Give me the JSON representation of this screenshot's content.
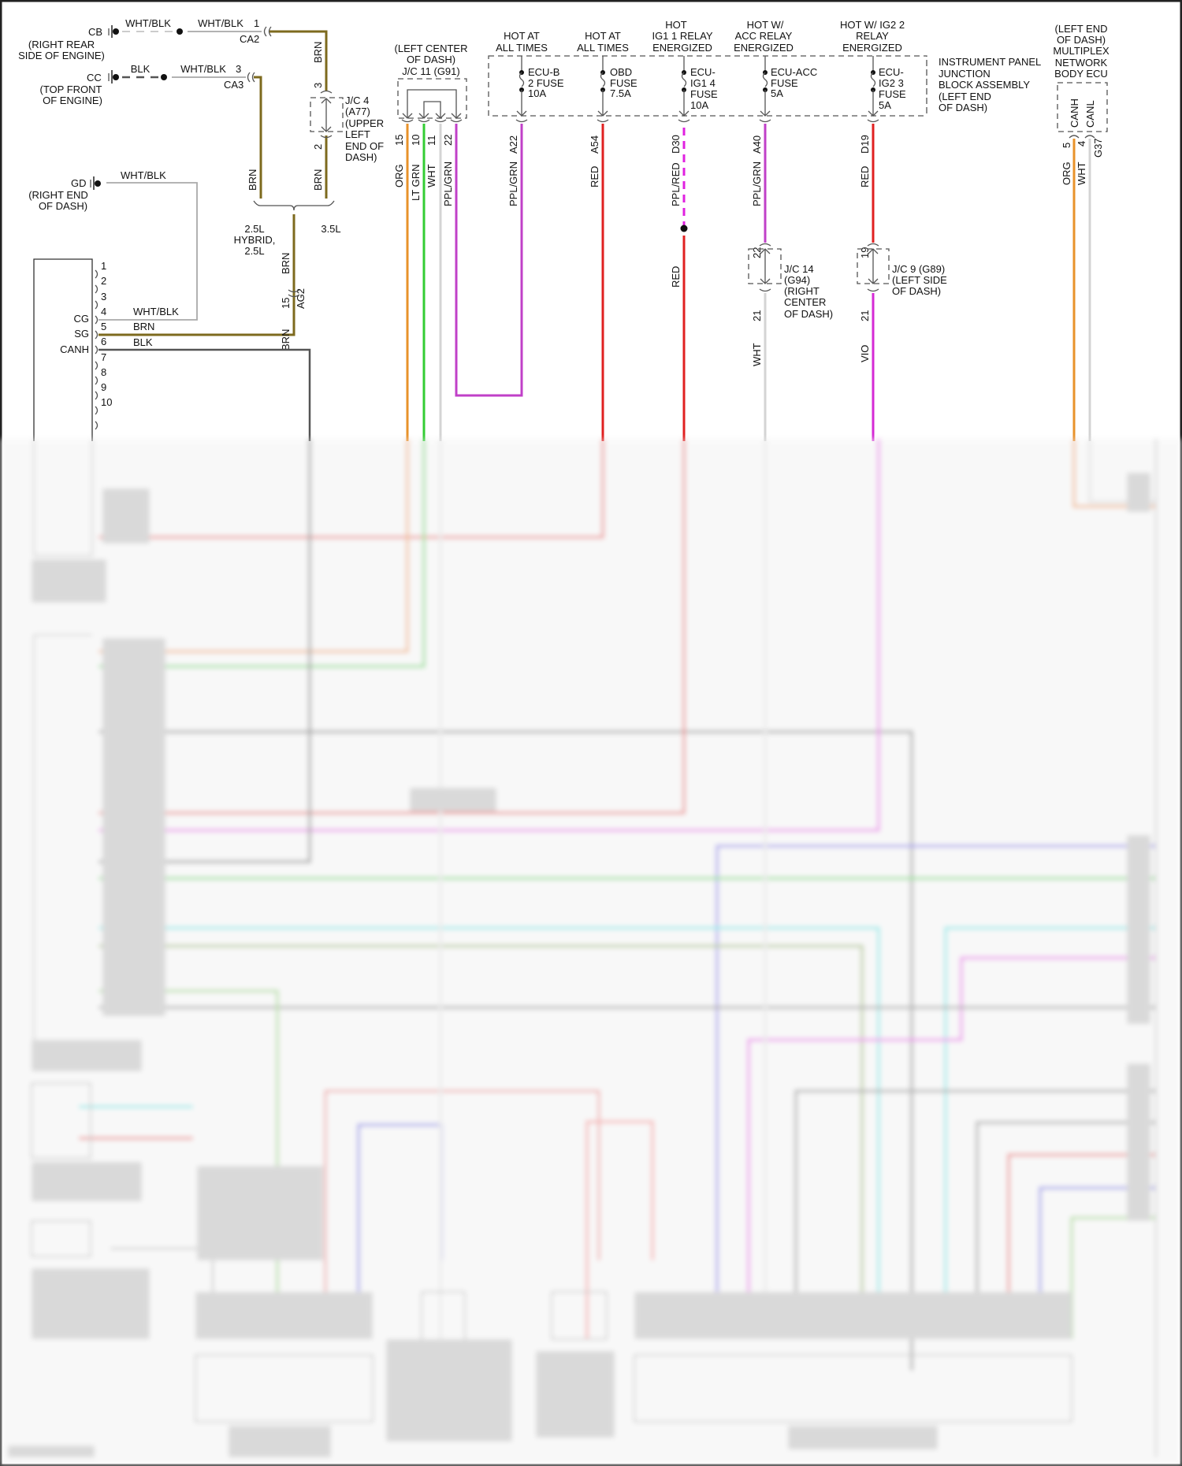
{
  "colors": {
    "BRN": "#7d6a1e",
    "ORG": "#e8922a",
    "LT_GRN": "#33cc33",
    "WHT": "#cfcfcf",
    "PPL_GRN": "#c040c8",
    "RED": "#e02020",
    "PPL_RED": "#e020e0",
    "VIO": "#d52ad5",
    "BLK": "#555555",
    "CAN": "#666666"
  },
  "grounds": [
    {
      "name": "CB",
      "location": [
        "(RIGHT REAR",
        "SIDE OF ENGINE)"
      ],
      "wire_a": "WHT/BLK",
      "wire_b": "WHT/BLK",
      "pin": "1",
      "connector": "CA2"
    },
    {
      "name": "CC",
      "location": [
        "(TOP FRONT",
        "OF ENGINE)"
      ],
      "wire_a": "BLK",
      "wire_b": "WHT/BLK",
      "pin": "3",
      "connector": "CA3"
    },
    {
      "name": "GD",
      "location": [
        "(RIGHT END",
        "OF DASH)"
      ],
      "wire_a": "WHT/BLK"
    }
  ],
  "jc4": {
    "lines": [
      "J/C 4",
      "(A77)",
      "(UPPER",
      "LEFT",
      "END OF",
      "DASH)"
    ],
    "pin_in": "3",
    "pin_out": "2",
    "wire_top": "BRN",
    "wire_bottom": "BRN",
    "wire_left": "BRN"
  },
  "brace": {
    "left": [
      "2.5L",
      "HYBRID,",
      "2.5L"
    ],
    "right": "3.5L"
  },
  "ag2": {
    "connector": "AG2",
    "pin": "15",
    "wire_top": "BRN",
    "wire_bottom": "BRN"
  },
  "ecu_left": {
    "pins": [
      "1",
      "2",
      "3",
      "4",
      "5",
      "6",
      "7",
      "8",
      "9",
      "10"
    ],
    "pin_labels": [
      "CG",
      "SG",
      "CANH"
    ],
    "wire_labels": [
      "WHT/BLK",
      "BRN",
      "BLK"
    ]
  },
  "jc11": {
    "lines": [
      "(LEFT CENTER",
      "OF DASH)",
      "J/C 11 (G91)"
    ],
    "pins": [
      "15",
      "10",
      "11",
      "22"
    ],
    "wires": [
      "ORG",
      "LT GRN",
      "WHT",
      "PPL/GRN"
    ]
  },
  "junction_block": {
    "lines": [
      "INSTRUMENT PANEL",
      "JUNCTION",
      "BLOCK ASSEMBLY",
      "(LEFT END",
      "OF DASH)"
    ],
    "circuits": [
      {
        "header": [
          "HOT AT",
          "ALL TIMES"
        ],
        "fuse": [
          "ECU-B",
          "2 FUSE",
          "10A"
        ],
        "pin": "A22",
        "wire": "PPL/GRN"
      },
      {
        "header": [
          "HOT AT",
          "ALL TIMES"
        ],
        "fuse": [
          "OBD",
          "FUSE",
          "7.5A"
        ],
        "pin": "A54",
        "wire": "RED"
      },
      {
        "header": [
          "HOT",
          "IG1 1 RELAY",
          "ENERGIZED"
        ],
        "fuse": [
          "ECU-",
          "IG1 4",
          "FUSE",
          "10A"
        ],
        "pin": "D30",
        "wire": "PPL/RED",
        "wire_after_splice": "RED"
      },
      {
        "header": [
          "HOT W/",
          "ACC RELAY",
          "ENERGIZED"
        ],
        "fuse": [
          "ECU-ACC",
          "FUSE",
          "5A"
        ],
        "pin": "A40",
        "wire": "PPL/GRN"
      },
      {
        "header": [
          "HOT W/ IG2 2",
          "RELAY",
          "ENERGIZED"
        ],
        "fuse": [
          "ECU-",
          "IG2 3",
          "FUSE",
          "5A"
        ],
        "pin": "D19",
        "wire": "RED"
      }
    ]
  },
  "jc14": {
    "lines": [
      "J/C 14",
      "(G94)",
      "(RIGHT",
      "CENTER",
      "OF DASH)"
    ],
    "pin_in": "22",
    "pin_out": "21",
    "wire_out": "WHT"
  },
  "jc9": {
    "lines": [
      "J/C 9 (G89)",
      "(LEFT SIDE",
      "OF DASH)"
    ],
    "pin_in": "19",
    "pin_out": "21",
    "wire_out": "VIO"
  },
  "body_ecu": {
    "lines": [
      "(LEFT END",
      "OF DASH)",
      "MULTIPLEX",
      "NETWORK",
      "BODY ECU"
    ],
    "terminals": [
      "CANH",
      "CANL"
    ],
    "pins": [
      "5",
      "4"
    ],
    "connector": "G37",
    "wires": [
      "ORG",
      "WHT"
    ]
  }
}
